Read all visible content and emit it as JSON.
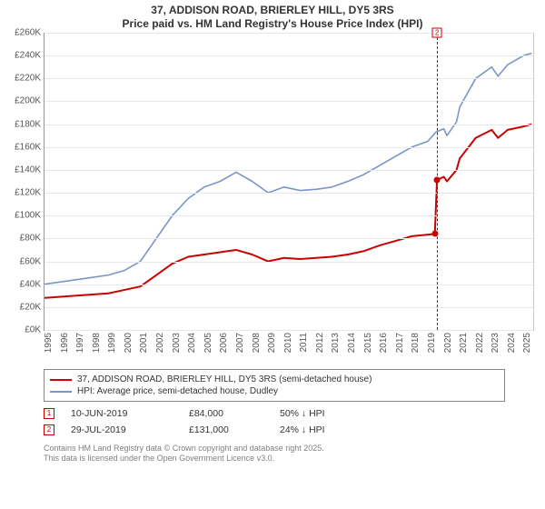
{
  "title_line1": "37, ADDISON ROAD, BRIERLEY HILL, DY5 3RS",
  "title_line2": "Price paid vs. HM Land Registry's House Price Index (HPI)",
  "chart": {
    "type": "line",
    "background_color": "#ffffff",
    "grid_color": "#e8e8e8",
    "axis_color": "#999999",
    "label_fontsize": 10,
    "y": {
      "min": 0,
      "max": 260,
      "ticks": [
        0,
        20,
        40,
        60,
        80,
        100,
        120,
        140,
        160,
        180,
        200,
        220,
        240,
        260
      ],
      "tick_prefix": "£",
      "tick_suffix": "K"
    },
    "x": {
      "min": 1995,
      "max": 2025.6,
      "ticks": [
        1995,
        1996,
        1997,
        1998,
        1999,
        2000,
        2001,
        2002,
        2003,
        2004,
        2005,
        2006,
        2007,
        2008,
        2009,
        2010,
        2011,
        2012,
        2013,
        2014,
        2015,
        2016,
        2017,
        2018,
        2019,
        2020,
        2021,
        2022,
        2023,
        2024,
        2025
      ]
    },
    "series": [
      {
        "id": "hpi",
        "label": "HPI: Average price, semi-detached house, Dudley",
        "color": "#7a96c8",
        "line_width": 1.6,
        "points": [
          [
            1995,
            40
          ],
          [
            1996,
            42
          ],
          [
            1997,
            44
          ],
          [
            1998,
            46
          ],
          [
            1999,
            48
          ],
          [
            2000,
            52
          ],
          [
            2001,
            60
          ],
          [
            2002,
            80
          ],
          [
            2003,
            100
          ],
          [
            2004,
            115
          ],
          [
            2005,
            125
          ],
          [
            2006,
            130
          ],
          [
            2007,
            138
          ],
          [
            2008,
            130
          ],
          [
            2009,
            120
          ],
          [
            2010,
            125
          ],
          [
            2011,
            122
          ],
          [
            2012,
            123
          ],
          [
            2013,
            125
          ],
          [
            2014,
            130
          ],
          [
            2015,
            136
          ],
          [
            2016,
            144
          ],
          [
            2017,
            152
          ],
          [
            2018,
            160
          ],
          [
            2019,
            165
          ],
          [
            2019.5,
            173
          ],
          [
            2020,
            176
          ],
          [
            2020.2,
            170
          ],
          [
            2020.8,
            182
          ],
          [
            2021,
            195
          ],
          [
            2022,
            220
          ],
          [
            2023,
            230
          ],
          [
            2023.4,
            222
          ],
          [
            2024,
            232
          ],
          [
            2025,
            240
          ],
          [
            2025.5,
            242
          ]
        ]
      },
      {
        "id": "price_paid",
        "label": "37, ADDISON ROAD, BRIERLEY HILL, DY5 3RS (semi-detached house)",
        "color": "#cc0000",
        "line_width": 2,
        "points": [
          [
            1995,
            28
          ],
          [
            1997,
            30
          ],
          [
            1999,
            32
          ],
          [
            2001,
            38
          ],
          [
            2002,
            48
          ],
          [
            2003,
            58
          ],
          [
            2004,
            64
          ],
          [
            2005,
            66
          ],
          [
            2006,
            68
          ],
          [
            2007,
            70
          ],
          [
            2008,
            66
          ],
          [
            2009,
            60
          ],
          [
            2010,
            63
          ],
          [
            2011,
            62
          ],
          [
            2012,
            63
          ],
          [
            2013,
            64
          ],
          [
            2014,
            66
          ],
          [
            2015,
            69
          ],
          [
            2016,
            74
          ],
          [
            2017,
            78
          ],
          [
            2018,
            82
          ],
          [
            2019.44,
            84
          ],
          [
            2019.576,
            131
          ],
          [
            2020,
            134
          ],
          [
            2020.2,
            130
          ],
          [
            2020.8,
            140
          ],
          [
            2021,
            150
          ],
          [
            2022,
            168
          ],
          [
            2023,
            175
          ],
          [
            2023.4,
            168
          ],
          [
            2024,
            175
          ],
          [
            2025,
            178
          ],
          [
            2025.5,
            180
          ]
        ]
      }
    ],
    "event_markers": [
      {
        "n": "1",
        "x": 2019.44,
        "y": 84,
        "color": "#cc0000",
        "dot_only": true
      },
      {
        "n": "2",
        "x": 2019.576,
        "y": 131,
        "color": "#cc0000",
        "vline": true,
        "label_y": 260
      }
    ]
  },
  "legend": [
    {
      "color": "#cc0000",
      "text": "37, ADDISON ROAD, BRIERLEY HILL, DY5 3RS (semi-detached house)"
    },
    {
      "color": "#7a96c8",
      "text": "HPI: Average price, semi-detached house, Dudley"
    }
  ],
  "transactions": [
    {
      "n": "1",
      "color": "#cc0000",
      "date": "10-JUN-2019",
      "price": "£84,000",
      "delta": "50% ↓ HPI"
    },
    {
      "n": "2",
      "color": "#cc0000",
      "date": "29-JUL-2019",
      "price": "£131,000",
      "delta": "24% ↓ HPI"
    }
  ],
  "footer_line1": "Contains HM Land Registry data © Crown copyright and database right 2025.",
  "footer_line2": "This data is licensed under the Open Government Licence v3.0."
}
